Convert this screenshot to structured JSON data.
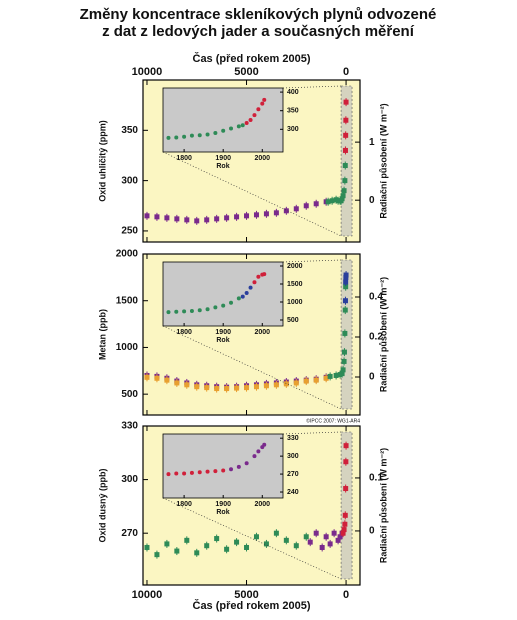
{
  "title_lines": [
    "Změny koncentrace skleníkových plynů odvozené",
    "z dat z ledových jader a současných měření"
  ],
  "chart_data": [
    {
      "type": "scatter",
      "xlabel": "Čas (před rokem 2005)",
      "ylabel": "Oxid uhličitý (ppm)",
      "y2label": "Radiační působení (W m⁻²)",
      "xlim": [
        10200,
        -700
      ],
      "xticks": [
        10000,
        5000,
        0
      ],
      "ylim": [
        239,
        400
      ],
      "yticks": [
        250,
        300,
        350
      ],
      "y2lim": [
        -0.72,
        2.07
      ],
      "y2ticks": [
        0,
        1
      ],
      "series": [
        {
          "color": "#7a2a8c",
          "x": [
            10000,
            9500,
            9000,
            8500,
            8000,
            7500,
            7000,
            6500,
            6000,
            5500,
            5000,
            4500,
            4000,
            3500,
            3000,
            2500,
            2000,
            1500,
            1000
          ],
          "values": [
            265,
            264,
            263,
            262,
            261,
            260,
            261,
            262,
            263,
            264,
            265,
            266,
            267,
            268,
            270,
            272,
            275,
            277,
            279
          ]
        },
        {
          "color": "#2e8b57",
          "x": [
            900,
            700,
            500,
            400,
            300,
            250,
            200,
            150,
            100,
            60,
            40
          ],
          "values": [
            279,
            280,
            281,
            280,
            280,
            280,
            282,
            285,
            290,
            300,
            315
          ]
        },
        {
          "color": "#d0203a",
          "x": [
            30,
            20,
            10,
            0
          ],
          "values": [
            330,
            345,
            360,
            378
          ]
        }
      ],
      "inset": {
        "xlabel": "Rok",
        "xlim": [
          1746,
          2053
        ],
        "xticks": [
          1800,
          1900,
          2000
        ],
        "ylim": [
          239,
          411
        ],
        "yticks": [
          300,
          350,
          400
        ],
        "series": [
          {
            "color": "#2e8b57",
            "x": [
              1760,
              1780,
              1800,
              1820,
              1840,
              1860,
              1880,
              1900,
              1920,
              1940,
              1950
            ],
            "values": [
              277,
              278,
              280,
              283,
              284,
              286,
              290,
              296,
              302,
              308,
              311
            ]
          },
          {
            "color": "#d0203a",
            "x": [
              1960,
              1970,
              1980,
              1990,
              2000,
              2005
            ],
            "values": [
              317,
              325,
              338,
              354,
              369,
              379
            ]
          }
        ]
      }
    },
    {
      "type": "scatter",
      "ylabel": "Metan (ppb)",
      "y2label": "Radiační působení (W m⁻²)",
      "note": "©IPCC 2007: WG1-AR4",
      "xlim": [
        10200,
        -700
      ],
      "ylim": [
        277,
        2000
      ],
      "yticks": [
        500,
        1000,
        1500,
        2000
      ],
      "y2lim": [
        -0.19,
        0.615
      ],
      "y2ticks": [
        0,
        0.2,
        0.4
      ],
      "series": [
        {
          "color": "#7a2a8c",
          "x": [
            10000,
            9500,
            9000,
            8500,
            8000,
            7500,
            7000,
            6500,
            6000,
            5500,
            5000,
            4500,
            4000,
            3500,
            3000,
            2500,
            2000,
            1500,
            1000
          ],
          "values": [
            700,
            690,
            670,
            640,
            620,
            600,
            590,
            580,
            575,
            580,
            590,
            600,
            610,
            620,
            630,
            640,
            650,
            660,
            680
          ]
        },
        {
          "color": "#e8a030",
          "x": [
            10000,
            9500,
            9000,
            8500,
            8000,
            7500,
            7000,
            6500,
            6000,
            5500,
            5000,
            4500,
            4000,
            3500,
            3000,
            2500,
            2000,
            1500,
            1000
          ],
          "values": [
            680,
            670,
            650,
            620,
            600,
            580,
            570,
            560,
            560,
            565,
            570,
            580,
            590,
            600,
            610,
            620,
            640,
            650,
            670
          ]
        },
        {
          "color": "#2e8b57",
          "x": [
            800,
            500,
            300,
            200,
            150,
            100,
            80,
            60,
            40,
            20
          ],
          "values": [
            690,
            700,
            710,
            720,
            760,
            850,
            950,
            1150,
            1400,
            1650
          ]
        },
        {
          "color": "#2a3f9c",
          "x": [
            30,
            20,
            10,
            0
          ],
          "values": [
            1500,
            1700,
            1750,
            1775
          ]
        }
      ],
      "inset": {
        "xlabel": "Rok",
        "xlim": [
          1746,
          2053
        ],
        "xticks": [
          1800,
          1900,
          2000
        ],
        "ylim": [
          333,
          2111
        ],
        "yticks": [
          500,
          1000,
          1500,
          2000
        ],
        "series": [
          {
            "color": "#2e8b57",
            "x": [
              1760,
              1780,
              1800,
              1820,
              1840,
              1860,
              1880,
              1900,
              1920,
              1940
            ],
            "values": [
              720,
              730,
              740,
              750,
              770,
              800,
              850,
              900,
              980,
              1100
            ]
          },
          {
            "color": "#2a3f9c",
            "x": [
              1950,
              1960,
              1970
            ],
            "values": [
              1150,
              1250,
              1400
            ]
          },
          {
            "color": "#d0203a",
            "x": [
              1980,
              1990,
              2000,
              2005
            ],
            "values": [
              1550,
              1700,
              1760,
              1775
            ]
          }
        ]
      }
    },
    {
      "type": "scatter",
      "xlabel": "Čas (před rokem 2005)",
      "ylabel": "Oxid dusný (ppb)",
      "y2label": "Radiační působení (W m⁻²)",
      "xlim": [
        10200,
        -700
      ],
      "xticks": [
        10000,
        5000,
        0
      ],
      "ylim": [
        241,
        330
      ],
      "yticks": [
        270,
        300,
        330
      ],
      "y2lim": [
        -0.102,
        0.198
      ],
      "y2ticks": [
        0,
        0.1
      ],
      "series": [
        {
          "color": "#2e8b57",
          "x": [
            10000,
            9500,
            9000,
            8500,
            8000,
            7500,
            7000,
            6500,
            6000,
            5500,
            5000,
            4500,
            4000,
            3500,
            3000,
            2500,
            2000
          ],
          "values": [
            262,
            258,
            264,
            260,
            266,
            259,
            263,
            267,
            261,
            265,
            262,
            268,
            264,
            270,
            266,
            263,
            268
          ]
        },
        {
          "color": "#7a2a8c",
          "x": [
            1800,
            1500,
            1200,
            1000,
            800,
            600,
            400,
            300,
            200
          ],
          "values": [
            265,
            270,
            262,
            268,
            264,
            270,
            266,
            268,
            270
          ]
        },
        {
          "color": "#d0203a",
          "x": [
            150,
            100,
            60,
            40,
            20,
            10,
            0
          ],
          "values": [
            270,
            272,
            275,
            280,
            295,
            310,
            319
          ]
        }
      ],
      "inset": {
        "xlabel": "Rok",
        "xlim": [
          1746,
          2053
        ],
        "xticks": [
          1800,
          1900,
          2000
        ],
        "ylim": [
          230,
          337
        ],
        "yticks": [
          240,
          270,
          300,
          330
        ],
        "series": [
          {
            "color": "#d0203a",
            "x": [
              1760,
              1780,
              1800,
              1820,
              1840,
              1860,
              1880,
              1900
            ],
            "values": [
              270,
              271,
              271,
              272,
              273,
              274,
              275,
              276
            ]
          },
          {
            "color": "#7a2a8c",
            "x": [
              1920,
              1940,
              1960,
              1980,
              1990,
              2000,
              2005
            ],
            "values": [
              278,
              282,
              288,
              300,
              308,
              315,
              319
            ]
          }
        ]
      }
    }
  ]
}
